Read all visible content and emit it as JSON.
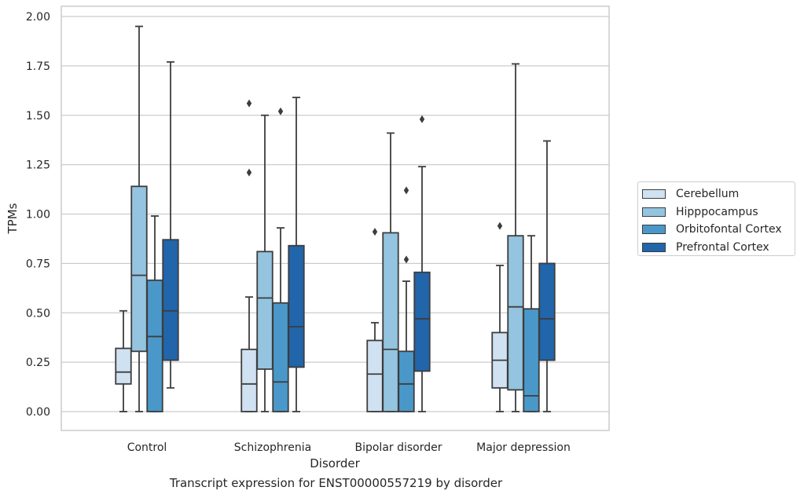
{
  "caption": "Transcript expression for ENST00000557219 by disorder",
  "chart_data": {
    "type": "box",
    "xlabel": "Disorder",
    "ylabel": "TPMs",
    "ylim": [
      -0.095,
      2.045
    ],
    "yticks": [
      "0.00",
      "0.25",
      "0.50",
      "0.75",
      "1.00",
      "1.25",
      "1.50",
      "1.75",
      "2.00"
    ],
    "grid": "horizontal",
    "legend_placement": "right",
    "categories": [
      "Control",
      "Schizophrenia",
      "Bipolar disorder",
      "Major depression"
    ],
    "series": [
      {
        "name": "Cerebellum",
        "color": "#d0e1f2",
        "boxes": [
          {
            "whislo": 0.0,
            "q1": 0.14,
            "med": 0.2,
            "q3": 0.32,
            "whishi": 0.51,
            "fliers": []
          },
          {
            "whislo": 0.0,
            "q1": 0.0,
            "med": 0.14,
            "q3": 0.315,
            "whishi": 0.58,
            "fliers": [
              1.21,
              1.56
            ]
          },
          {
            "whislo": 0.0,
            "q1": 0.0,
            "med": 0.19,
            "q3": 0.36,
            "whishi": 0.45,
            "fliers": [
              0.91
            ]
          },
          {
            "whislo": 0.0,
            "q1": 0.12,
            "med": 0.26,
            "q3": 0.4,
            "whishi": 0.74,
            "fliers": [
              0.94
            ]
          }
        ]
      },
      {
        "name": "Hipppocampus",
        "color": "#94c4df",
        "boxes": [
          {
            "whislo": 0.0,
            "q1": 0.305,
            "med": 0.69,
            "q3": 1.14,
            "whishi": 1.95,
            "fliers": []
          },
          {
            "whislo": 0.0,
            "q1": 0.215,
            "med": 0.575,
            "q3": 0.81,
            "whishi": 1.5,
            "fliers": []
          },
          {
            "whislo": 0.0,
            "q1": 0.0,
            "med": 0.315,
            "q3": 0.905,
            "whishi": 1.41,
            "fliers": []
          },
          {
            "whislo": 0.0,
            "q1": 0.11,
            "med": 0.53,
            "q3": 0.89,
            "whishi": 1.76,
            "fliers": []
          }
        ]
      },
      {
        "name": "Orbitofontal Cortex",
        "color": "#4a98c9",
        "boxes": [
          {
            "whislo": 0.0,
            "q1": 0.0,
            "med": 0.38,
            "q3": 0.665,
            "whishi": 0.99,
            "fliers": []
          },
          {
            "whislo": 0.0,
            "q1": 0.0,
            "med": 0.15,
            "q3": 0.55,
            "whishi": 0.93,
            "fliers": [
              1.52
            ]
          },
          {
            "whislo": 0.0,
            "q1": 0.0,
            "med": 0.14,
            "q3": 0.305,
            "whishi": 0.66,
            "fliers": [
              0.77,
              1.12
            ]
          },
          {
            "whislo": 0.0,
            "q1": 0.0,
            "med": 0.08,
            "q3": 0.52,
            "whishi": 0.89,
            "fliers": []
          }
        ]
      },
      {
        "name": "Prefrontal Cortex",
        "color": "#2165ab",
        "boxes": [
          {
            "whislo": 0.12,
            "q1": 0.26,
            "med": 0.51,
            "q3": 0.87,
            "whishi": 1.77,
            "fliers": []
          },
          {
            "whislo": 0.0,
            "q1": 0.225,
            "med": 0.43,
            "q3": 0.84,
            "whishi": 1.59,
            "fliers": []
          },
          {
            "whislo": 0.0,
            "q1": 0.205,
            "med": 0.47,
            "q3": 0.705,
            "whishi": 1.24,
            "fliers": [
              1.48
            ]
          },
          {
            "whislo": 0.0,
            "q1": 0.26,
            "med": 0.47,
            "q3": 0.75,
            "whishi": 1.37,
            "fliers": []
          }
        ]
      }
    ]
  }
}
